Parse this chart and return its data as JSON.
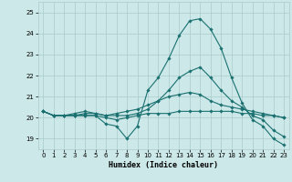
{
  "xlabel": "Humidex (Indice chaleur)",
  "xlim": [
    -0.5,
    23.5
  ],
  "ylim": [
    18.5,
    25.5
  ],
  "yticks": [
    19,
    20,
    21,
    22,
    23,
    24,
    25
  ],
  "xticks": [
    0,
    1,
    2,
    3,
    4,
    5,
    6,
    7,
    8,
    9,
    10,
    11,
    12,
    13,
    14,
    15,
    16,
    17,
    18,
    19,
    20,
    21,
    22,
    23
  ],
  "bg_color": "#cce8e8",
  "grid_color": "#aacccc",
  "line_color": "#1a7070",
  "lines": [
    {
      "x": [
        0,
        1,
        2,
        3,
        4,
        5,
        6,
        7,
        8,
        9,
        10,
        11,
        12,
        13,
        14,
        15,
        16,
        17,
        18,
        19,
        20,
        21,
        22,
        23
      ],
      "y": [
        20.3,
        20.1,
        20.1,
        20.1,
        20.1,
        20.1,
        19.7,
        19.6,
        19.0,
        19.6,
        21.3,
        21.9,
        22.8,
        23.9,
        24.6,
        24.7,
        24.2,
        23.3,
        21.9,
        20.7,
        19.9,
        19.6,
        19.0,
        18.7
      ]
    },
    {
      "x": [
        0,
        1,
        2,
        3,
        4,
        5,
        6,
        7,
        8,
        9,
        10,
        11,
        12,
        13,
        14,
        15,
        16,
        17,
        18,
        19,
        20,
        21,
        22,
        23
      ],
      "y": [
        20.3,
        20.1,
        20.1,
        20.1,
        20.2,
        20.2,
        20.1,
        20.1,
        20.1,
        20.2,
        20.4,
        20.8,
        21.3,
        21.9,
        22.2,
        22.4,
        21.9,
        21.3,
        20.8,
        20.5,
        20.1,
        19.9,
        19.4,
        19.1
      ]
    },
    {
      "x": [
        0,
        1,
        2,
        3,
        4,
        5,
        6,
        7,
        8,
        9,
        10,
        11,
        12,
        13,
        14,
        15,
        16,
        17,
        18,
        19,
        20,
        21,
        22,
        23
      ],
      "y": [
        20.3,
        20.1,
        20.1,
        20.2,
        20.3,
        20.2,
        20.1,
        20.2,
        20.3,
        20.4,
        20.6,
        20.8,
        21.0,
        21.1,
        21.2,
        21.1,
        20.8,
        20.6,
        20.5,
        20.4,
        20.3,
        20.2,
        20.1,
        20.0
      ]
    },
    {
      "x": [
        0,
        1,
        2,
        3,
        4,
        5,
        6,
        7,
        8,
        9,
        10,
        11,
        12,
        13,
        14,
        15,
        16,
        17,
        18,
        19,
        20,
        21,
        22,
        23
      ],
      "y": [
        20.3,
        20.1,
        20.1,
        20.1,
        20.1,
        20.1,
        20.0,
        19.9,
        20.0,
        20.1,
        20.2,
        20.2,
        20.2,
        20.3,
        20.3,
        20.3,
        20.3,
        20.3,
        20.3,
        20.2,
        20.2,
        20.1,
        20.1,
        20.0
      ]
    }
  ]
}
